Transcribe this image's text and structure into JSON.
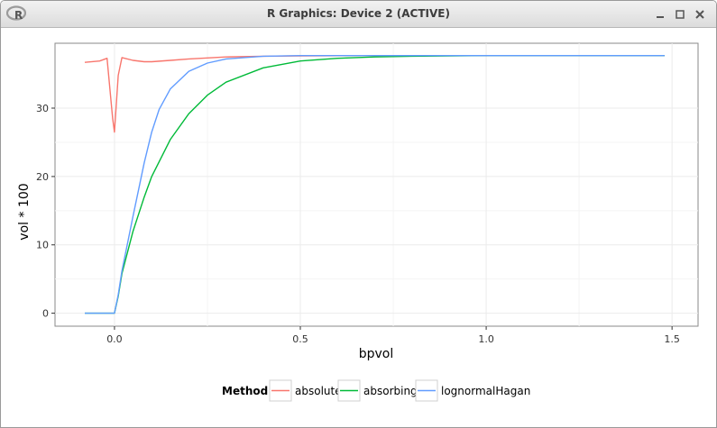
{
  "window": {
    "title": "R Graphics: Device 2 (ACTIVE)",
    "icons": {
      "app": "r-logo-icon",
      "minimize": "minimize-icon",
      "maximize": "maximize-icon",
      "close": "close-icon"
    }
  },
  "chart_data": {
    "type": "line",
    "xlabel": "bpvol",
    "ylabel": "vol * 100",
    "xlim": [
      -0.16,
      1.57
    ],
    "ylim": [
      -1.9,
      39.5
    ],
    "xticks": [
      0.0,
      0.5,
      1.0,
      1.5
    ],
    "xtick_labels": [
      "0.0",
      "0.5",
      "1.0",
      "1.5"
    ],
    "yticks": [
      0,
      10,
      20,
      30
    ],
    "ytick_labels": [
      "0",
      "10",
      "20",
      "30"
    ],
    "grid": true,
    "background": "#ffffff",
    "legend": {
      "title": "Method",
      "position": "bottom"
    },
    "series": [
      {
        "name": "absolute",
        "color": "#F8766D",
        "x": [
          -0.08,
          -0.04,
          -0.02,
          -0.005,
          0.0,
          0.01,
          0.02,
          0.05,
          0.08,
          0.1,
          0.15,
          0.2,
          0.3,
          0.4,
          0.5,
          0.7,
          1.0,
          1.48
        ],
        "y": [
          36.7,
          36.9,
          37.3,
          28.5,
          26.5,
          34.8,
          37.4,
          37.0,
          36.8,
          36.8,
          37.0,
          37.2,
          37.5,
          37.6,
          37.65,
          37.7,
          37.7,
          37.7
        ]
      },
      {
        "name": "absorbing",
        "color": "#00BA38",
        "x": [
          -0.08,
          -0.04,
          -0.01,
          0.0,
          0.01,
          0.02,
          0.05,
          0.08,
          0.1,
          0.15,
          0.2,
          0.25,
          0.3,
          0.4,
          0.5,
          0.6,
          0.7,
          0.8,
          1.0,
          1.2,
          1.48
        ],
        "y": [
          0,
          0,
          0,
          0,
          2.5,
          5.8,
          12.0,
          17.0,
          20.0,
          25.4,
          29.2,
          31.9,
          33.8,
          35.9,
          36.9,
          37.3,
          37.5,
          37.6,
          37.7,
          37.7,
          37.7
        ]
      },
      {
        "name": "lognormalHagan",
        "color": "#619CFF",
        "x": [
          -0.08,
          -0.04,
          -0.01,
          0.0,
          0.01,
          0.02,
          0.05,
          0.08,
          0.1,
          0.12,
          0.15,
          0.2,
          0.25,
          0.3,
          0.4,
          0.5,
          0.7,
          1.0,
          1.48
        ],
        "y": [
          0,
          0,
          0,
          0,
          2.7,
          6.2,
          14.2,
          22.0,
          26.5,
          29.8,
          32.8,
          35.4,
          36.6,
          37.2,
          37.6,
          37.7,
          37.7,
          37.7,
          37.7
        ]
      }
    ]
  }
}
